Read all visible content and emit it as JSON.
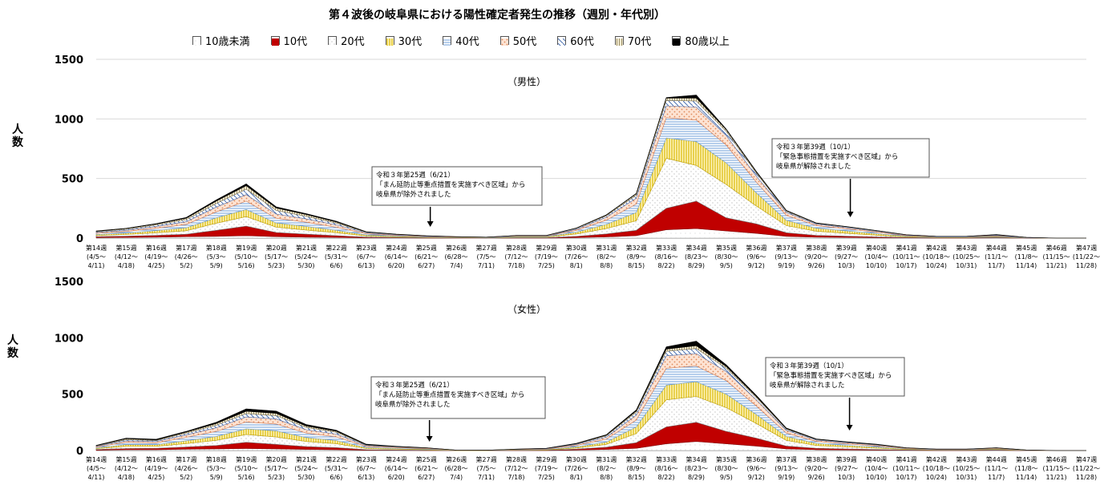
{
  "title": "第４波後の岐阜県における陽性確定者発生の推移（週別・年代別）",
  "colors": [
    "#ffffff",
    "#c00000",
    "#ffffff",
    "#fff2a8",
    "#c9ddf2",
    "#f4c4a8",
    "#c9d6ee",
    "#e8e0c0",
    "#000000"
  ],
  "chart_data": [
    {
      "type": "area",
      "panel_label": "（男性）",
      "ylabel": "人数",
      "ylim": [
        0,
        1500
      ],
      "yticks": [
        0,
        500,
        1000,
        1500
      ],
      "grid": true,
      "legend_position": "top",
      "categories": [
        {
          "w": "第14週",
          "d1": "(4/5～",
          "d2": "4/11)"
        },
        {
          "w": "第15週",
          "d1": "(4/12～",
          "d2": "4/18)"
        },
        {
          "w": "第16週",
          "d1": "(4/19～",
          "d2": "4/25)"
        },
        {
          "w": "第17週",
          "d1": "(4/26～",
          "d2": "5/2)"
        },
        {
          "w": "第18週",
          "d1": "(5/3～",
          "d2": "5/9)"
        },
        {
          "w": "第19週",
          "d1": "(5/10～",
          "d2": "5/16)"
        },
        {
          "w": "第20週",
          "d1": "(5/17～",
          "d2": "5/23)"
        },
        {
          "w": "第21週",
          "d1": "(5/24～",
          "d2": "5/30)"
        },
        {
          "w": "第22週",
          "d1": "(5/31～",
          "d2": "6/6)"
        },
        {
          "w": "第23週",
          "d1": "(6/7～",
          "d2": "6/13)"
        },
        {
          "w": "第24週",
          "d1": "(6/14～",
          "d2": "6/20)"
        },
        {
          "w": "第25週",
          "d1": "(6/21～",
          "d2": "6/27)"
        },
        {
          "w": "第26週",
          "d1": "(6/28～",
          "d2": "7/4)"
        },
        {
          "w": "第27週",
          "d1": "(7/5～",
          "d2": "7/11)"
        },
        {
          "w": "第28週",
          "d1": "(7/12～",
          "d2": "7/18)"
        },
        {
          "w": "第29週",
          "d1": "(7/19～",
          "d2": "7/25)"
        },
        {
          "w": "第30週",
          "d1": "(7/26～",
          "d2": "8/1)"
        },
        {
          "w": "第31週",
          "d1": "(8/2～",
          "d2": "8/8)"
        },
        {
          "w": "第32週",
          "d1": "(8/9～",
          "d2": "8/15)"
        },
        {
          "w": "第33週",
          "d1": "(8/16～",
          "d2": "8/22)"
        },
        {
          "w": "第34週",
          "d1": "(8/23～",
          "d2": "8/29)"
        },
        {
          "w": "第35週",
          "d1": "(8/30～",
          "d2": "9/5)"
        },
        {
          "w": "第36週",
          "d1": "(9/6～",
          "d2": "9/12)"
        },
        {
          "w": "第37週",
          "d1": "(9/13～",
          "d2": "9/19)"
        },
        {
          "w": "第38週",
          "d1": "(9/20～",
          "d2": "9/26)"
        },
        {
          "w": "第39週",
          "d1": "(9/27～",
          "d2": "10/3)"
        },
        {
          "w": "第40週",
          "d1": "(10/4～",
          "d2": "10/10)"
        },
        {
          "w": "第41週",
          "d1": "(10/11～",
          "d2": "10/17)"
        },
        {
          "w": "第42週",
          "d1": "(10/18～",
          "d2": "10/24)"
        },
        {
          "w": "第43週",
          "d1": "(10/25～",
          "d2": "10/31)"
        },
        {
          "w": "第44週",
          "d1": "(11/1～",
          "d2": "11/7)"
        },
        {
          "w": "第45週",
          "d1": "(11/8～",
          "d2": "11/14)"
        },
        {
          "w": "第46週",
          "d1": "(11/15～",
          "d2": "11/21)"
        },
        {
          "w": "第47週",
          "d1": "(11/22～",
          "d2": "11/28)"
        }
      ],
      "series": [
        {
          "name": "10歳未満",
          "values": [
            4,
            6,
            8,
            12,
            15,
            20,
            12,
            8,
            6,
            3,
            2,
            1,
            1,
            0,
            1,
            1,
            5,
            10,
            20,
            70,
            80,
            60,
            40,
            15,
            8,
            6,
            4,
            2,
            1,
            1,
            2,
            0,
            0,
            0
          ]
        },
        {
          "name": "10代",
          "values": [
            8,
            10,
            15,
            20,
            50,
            80,
            35,
            25,
            15,
            5,
            3,
            2,
            1,
            1,
            2,
            2,
            10,
            25,
            45,
            180,
            230,
            110,
            80,
            30,
            15,
            10,
            6,
            3,
            2,
            2,
            3,
            1,
            0,
            0
          ]
        },
        {
          "name": "20代",
          "values": [
            10,
            14,
            22,
            30,
            60,
            80,
            45,
            35,
            25,
            10,
            6,
            3,
            2,
            2,
            5,
            5,
            20,
            45,
            80,
            420,
            300,
            280,
            150,
            60,
            35,
            25,
            15,
            6,
            3,
            3,
            5,
            1,
            0,
            0
          ]
        },
        {
          "name": "30代",
          "values": [
            8,
            12,
            18,
            25,
            45,
            60,
            35,
            30,
            20,
            8,
            5,
            3,
            2,
            1,
            4,
            4,
            15,
            35,
            70,
            170,
            200,
            180,
            110,
            45,
            25,
            20,
            12,
            5,
            3,
            3,
            4,
            1,
            0,
            0
          ]
        },
        {
          "name": "40代",
          "values": [
            10,
            14,
            20,
            28,
            50,
            70,
            40,
            35,
            25,
            10,
            6,
            4,
            2,
            2,
            4,
            4,
            15,
            35,
            70,
            170,
            180,
            150,
            90,
            40,
            22,
            18,
            12,
            5,
            3,
            3,
            5,
            1,
            0,
            0
          ]
        },
        {
          "name": "50代",
          "values": [
            8,
            10,
            15,
            22,
            40,
            55,
            35,
            28,
            20,
            8,
            5,
            3,
            2,
            1,
            3,
            3,
            10,
            25,
            50,
            100,
            110,
            80,
            50,
            25,
            12,
            10,
            8,
            4,
            2,
            2,
            4,
            1,
            0,
            0
          ]
        },
        {
          "name": "60代",
          "values": [
            6,
            8,
            12,
            18,
            30,
            45,
            30,
            22,
            15,
            5,
            3,
            2,
            1,
            1,
            2,
            2,
            6,
            12,
            25,
            45,
            50,
            35,
            25,
            10,
            6,
            5,
            4,
            2,
            1,
            1,
            3,
            1,
            0,
            0
          ]
        },
        {
          "name": "70代",
          "values": [
            4,
            6,
            8,
            12,
            20,
            30,
            20,
            15,
            10,
            3,
            2,
            1,
            1,
            0,
            1,
            1,
            3,
            6,
            12,
            20,
            25,
            15,
            10,
            5,
            3,
            2,
            2,
            1,
            0,
            0,
            2,
            0,
            0,
            0
          ]
        },
        {
          "name": "80歳以上",
          "values": [
            2,
            2,
            4,
            6,
            10,
            15,
            10,
            7,
            6,
            2,
            1,
            1,
            0,
            0,
            0,
            0,
            1,
            2,
            3,
            5,
            25,
            5,
            5,
            3,
            1,
            1,
            1,
            0,
            0,
            0,
            2,
            0,
            0,
            0
          ]
        }
      ],
      "annotations": [
        {
          "lines": [
            "令和３年第25週（6/21）",
            "「まん延防止等重点措置を実施すべき区域」から",
            "岐阜県が除外されました"
          ],
          "category_index": 11
        },
        {
          "lines": [
            "令和３年第39週（10/1）",
            "「緊急事態措置を実施すべき区域」から",
            "岐阜県が解除されました"
          ],
          "category_index": 25
        }
      ]
    },
    {
      "type": "area",
      "panel_label": "（女性）",
      "ylabel": "人数",
      "ylim": [
        0,
        1500
      ],
      "yticks": [
        0,
        500,
        1000,
        1500
      ],
      "grid": false,
      "legend_position": "top",
      "categories": "same",
      "series": [
        {
          "name": "10歳未満",
          "values": [
            3,
            8,
            8,
            12,
            15,
            18,
            15,
            10,
            8,
            3,
            2,
            1,
            0,
            0,
            1,
            1,
            5,
            10,
            20,
            60,
            80,
            60,
            40,
            15,
            8,
            6,
            4,
            2,
            1,
            1,
            2,
            0,
            0,
            0
          ]
        },
        {
          "name": "10代",
          "values": [
            6,
            10,
            12,
            20,
            30,
            55,
            40,
            25,
            18,
            5,
            3,
            2,
            0,
            0,
            1,
            2,
            8,
            20,
            50,
            150,
            170,
            110,
            70,
            25,
            12,
            8,
            5,
            3,
            2,
            2,
            3,
            1,
            0,
            0
          ]
        },
        {
          "name": "20代",
          "values": [
            8,
            20,
            18,
            30,
            45,
            70,
            65,
            45,
            35,
            10,
            8,
            5,
            1,
            1,
            2,
            3,
            10,
            25,
            80,
            240,
            230,
            210,
            130,
            50,
            25,
            18,
            12,
            5,
            3,
            3,
            5,
            1,
            0,
            0
          ]
        },
        {
          "name": "30代",
          "values": [
            6,
            15,
            14,
            25,
            35,
            50,
            55,
            35,
            28,
            8,
            6,
            4,
            1,
            1,
            2,
            3,
            10,
            20,
            60,
            130,
            130,
            120,
            80,
            35,
            18,
            14,
            10,
            4,
            2,
            2,
            4,
            1,
            0,
            0
          ]
        },
        {
          "name": "40代",
          "values": [
            8,
            20,
            16,
            30,
            45,
            60,
            60,
            40,
            32,
            10,
            7,
            5,
            1,
            1,
            2,
            4,
            12,
            25,
            60,
            150,
            140,
            120,
            75,
            30,
            18,
            14,
            10,
            4,
            2,
            2,
            4,
            1,
            0,
            0
          ]
        },
        {
          "name": "50代",
          "values": [
            6,
            14,
            12,
            22,
            32,
            45,
            45,
            30,
            25,
            8,
            5,
            4,
            1,
            0,
            2,
            3,
            8,
            18,
            45,
            110,
            110,
            80,
            55,
            25,
            12,
            10,
            8,
            3,
            2,
            2,
            3,
            1,
            0,
            0
          ]
        },
        {
          "name": "60代",
          "values": [
            4,
            10,
            8,
            15,
            22,
            30,
            30,
            20,
            16,
            5,
            3,
            2,
            0,
            0,
            1,
            2,
            5,
            12,
            25,
            40,
            45,
            30,
            20,
            10,
            5,
            4,
            3,
            2,
            1,
            1,
            2,
            0,
            0,
            0
          ]
        },
        {
          "name": "70代",
          "values": [
            3,
            8,
            6,
            10,
            15,
            20,
            20,
            12,
            10,
            3,
            2,
            1,
            0,
            0,
            1,
            1,
            3,
            6,
            12,
            20,
            25,
            15,
            10,
            5,
            3,
            2,
            2,
            1,
            0,
            0,
            1,
            0,
            0,
            0
          ]
        },
        {
          "name": "80歳以上",
          "values": [
            2,
            5,
            6,
            6,
            11,
            22,
            20,
            13,
            8,
            4,
            2,
            1,
            0,
            0,
            1,
            1,
            2,
            4,
            8,
            20,
            40,
            15,
            10,
            5,
            2,
            2,
            2,
            1,
            0,
            0,
            1,
            0,
            0,
            0
          ]
        }
      ],
      "annotations": [
        {
          "lines": [
            "令和３年第25週（6/21）",
            "「まん延防止等重点措置を実施すべき区域」から",
            "岐阜県が除外されました"
          ],
          "category_index": 11
        },
        {
          "lines": [
            "令和３年第39週（10/1）",
            "「緊急事態措置を実施すべき区域」から",
            "岐阜県が解除されました"
          ],
          "category_index": 25
        }
      ]
    }
  ]
}
